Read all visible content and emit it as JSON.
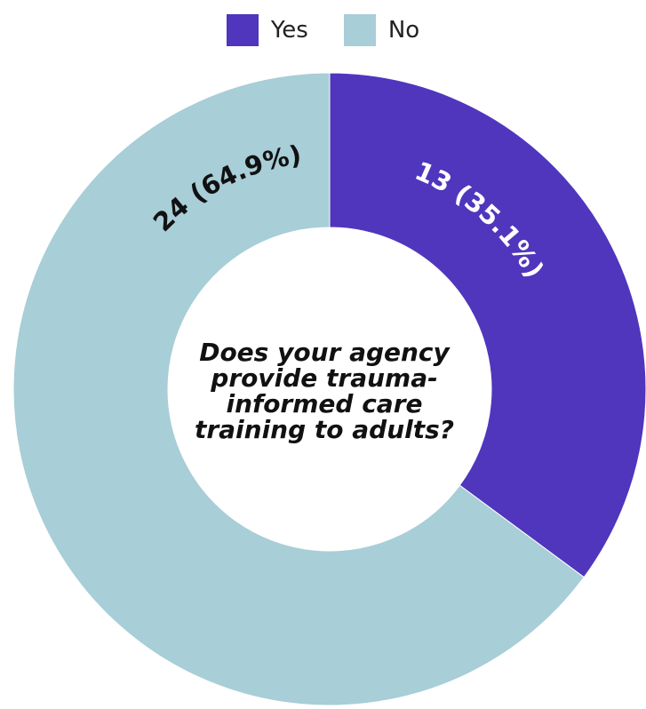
{
  "chart_data": {
    "type": "pie",
    "donut": true,
    "title": "Does your agency provide trauma-informed care training to adults?",
    "categories": [
      "Yes",
      "No"
    ],
    "values": [
      13,
      24
    ],
    "data_labels": [
      "13 (35.1%)",
      "24 (64.9%)"
    ],
    "colors": [
      "#4f36bd",
      "#a8ced7"
    ],
    "label_colors": [
      "#ffffff",
      "#111111"
    ],
    "legend_position": "top",
    "start_angle": "12 o'clock, clockwise"
  }
}
